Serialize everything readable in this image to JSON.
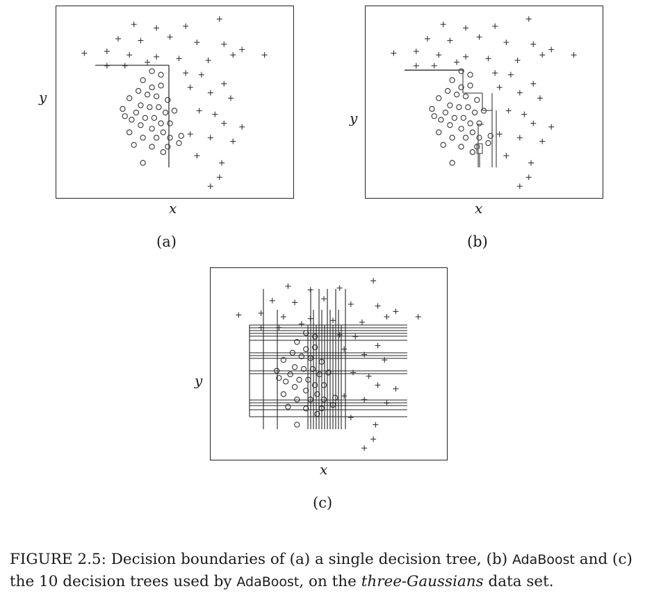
{
  "panels": [
    {
      "id": "a",
      "sublabel": "(a)",
      "xlabel": "x",
      "ylabel": "y"
    },
    {
      "id": "b",
      "sublabel": "(b)",
      "xlabel": "x",
      "ylabel": "y"
    },
    {
      "id": "c",
      "sublabel": "(c)",
      "xlabel": "x",
      "ylabel": "y"
    }
  ],
  "caption": {
    "prefix": "FIGURE 2.5: Decision boundaries of (a) a single decision tree, (b) ",
    "algo1": "AdaBoost",
    "mid": " and (c) the 10 decision trees used by ",
    "algo2": "AdaBoost",
    "mid2": ", on the ",
    "dataset": "three-Gaussians",
    "suffix": " data set."
  },
  "chart_data": [
    {
      "type": "scatter",
      "panel": "a",
      "title": "",
      "xlabel": "x",
      "ylabel": "y",
      "series": [
        {
          "marker": "plus",
          "points": [
            [
              0.32,
              0.93
            ],
            [
              0.42,
              0.91
            ],
            [
              0.55,
              0.92
            ],
            [
              0.7,
              0.96
            ],
            [
              0.25,
              0.85
            ],
            [
              0.35,
              0.84
            ],
            [
              0.48,
              0.86
            ],
            [
              0.6,
              0.83
            ],
            [
              0.72,
              0.82
            ],
            [
              0.8,
              0.79
            ],
            [
              0.1,
              0.77
            ],
            [
              0.2,
              0.78
            ],
            [
              0.3,
              0.76
            ],
            [
              0.42,
              0.75
            ],
            [
              0.52,
              0.74
            ],
            [
              0.65,
              0.73
            ],
            [
              0.76,
              0.76
            ],
            [
              0.9,
              0.76
            ],
            [
              0.2,
              0.7
            ],
            [
              0.28,
              0.7
            ],
            [
              0.38,
              0.72
            ],
            [
              0.55,
              0.66
            ],
            [
              0.62,
              0.65
            ],
            [
              0.72,
              0.6
            ],
            [
              0.57,
              0.58
            ],
            [
              0.66,
              0.55
            ],
            [
              0.75,
              0.52
            ],
            [
              0.61,
              0.45
            ],
            [
              0.68,
              0.43
            ],
            [
              0.72,
              0.38
            ],
            [
              0.8,
              0.36
            ],
            [
              0.57,
              0.32
            ],
            [
              0.66,
              0.3
            ],
            [
              0.76,
              0.28
            ],
            [
              0.6,
              0.2
            ],
            [
              0.71,
              0.16
            ],
            [
              0.7,
              0.08
            ],
            [
              0.66,
              0.03
            ]
          ]
        },
        {
          "marker": "circle",
          "points": [
            [
              0.4,
              0.67
            ],
            [
              0.44,
              0.65
            ],
            [
              0.36,
              0.62
            ],
            [
              0.4,
              0.58
            ],
            [
              0.44,
              0.59
            ],
            [
              0.34,
              0.56
            ],
            [
              0.38,
              0.54
            ],
            [
              0.42,
              0.53
            ],
            [
              0.47,
              0.51
            ],
            [
              0.3,
              0.52
            ],
            [
              0.35,
              0.48
            ],
            [
              0.39,
              0.47
            ],
            [
              0.43,
              0.47
            ],
            [
              0.46,
              0.44
            ],
            [
              0.33,
              0.44
            ],
            [
              0.37,
              0.41
            ],
            [
              0.41,
              0.41
            ],
            [
              0.44,
              0.38
            ],
            [
              0.27,
              0.46
            ],
            [
              0.28,
              0.42
            ],
            [
              0.31,
              0.4
            ],
            [
              0.35,
              0.37
            ],
            [
              0.4,
              0.35
            ],
            [
              0.45,
              0.33
            ],
            [
              0.48,
              0.38
            ],
            [
              0.5,
              0.45
            ],
            [
              0.3,
              0.33
            ],
            [
              0.36,
              0.3
            ],
            [
              0.42,
              0.3
            ],
            [
              0.48,
              0.3
            ],
            [
              0.53,
              0.31
            ],
            [
              0.32,
              0.26
            ],
            [
              0.4,
              0.25
            ],
            [
              0.47,
              0.25
            ],
            [
              0.52,
              0.27
            ],
            [
              0.36,
              0.16
            ],
            [
              0.45,
              0.22
            ]
          ]
        }
      ]
    },
    {
      "type": "scatter",
      "panel": "b",
      "title": "",
      "xlabel": "x",
      "ylabel": "y",
      "series": [
        {
          "marker": "plus",
          "points": [
            [
              0.32,
              0.93
            ],
            [
              0.42,
              0.91
            ],
            [
              0.55,
              0.92
            ],
            [
              0.7,
              0.96
            ],
            [
              0.25,
              0.85
            ],
            [
              0.35,
              0.84
            ],
            [
              0.48,
              0.86
            ],
            [
              0.6,
              0.83
            ],
            [
              0.72,
              0.82
            ],
            [
              0.8,
              0.79
            ],
            [
              0.1,
              0.77
            ],
            [
              0.2,
              0.78
            ],
            [
              0.3,
              0.76
            ],
            [
              0.42,
              0.75
            ],
            [
              0.52,
              0.74
            ],
            [
              0.65,
              0.73
            ],
            [
              0.76,
              0.76
            ],
            [
              0.9,
              0.76
            ],
            [
              0.2,
              0.7
            ],
            [
              0.28,
              0.7
            ],
            [
              0.38,
              0.72
            ],
            [
              0.55,
              0.66
            ],
            [
              0.62,
              0.65
            ],
            [
              0.72,
              0.6
            ],
            [
              0.57,
              0.58
            ],
            [
              0.66,
              0.55
            ],
            [
              0.75,
              0.52
            ],
            [
              0.61,
              0.45
            ],
            [
              0.68,
              0.43
            ],
            [
              0.72,
              0.38
            ],
            [
              0.8,
              0.36
            ],
            [
              0.57,
              0.32
            ],
            [
              0.66,
              0.3
            ],
            [
              0.76,
              0.28
            ],
            [
              0.6,
              0.2
            ],
            [
              0.71,
              0.16
            ],
            [
              0.7,
              0.08
            ],
            [
              0.66,
              0.03
            ]
          ]
        },
        {
          "marker": "circle",
          "points": [
            [
              0.4,
              0.67
            ],
            [
              0.44,
              0.65
            ],
            [
              0.36,
              0.62
            ],
            [
              0.4,
              0.58
            ],
            [
              0.44,
              0.59
            ],
            [
              0.34,
              0.56
            ],
            [
              0.38,
              0.54
            ],
            [
              0.42,
              0.53
            ],
            [
              0.47,
              0.51
            ],
            [
              0.3,
              0.52
            ],
            [
              0.35,
              0.48
            ],
            [
              0.39,
              0.47
            ],
            [
              0.43,
              0.47
            ],
            [
              0.46,
              0.44
            ],
            [
              0.33,
              0.44
            ],
            [
              0.37,
              0.41
            ],
            [
              0.41,
              0.41
            ],
            [
              0.44,
              0.38
            ],
            [
              0.27,
              0.46
            ],
            [
              0.28,
              0.42
            ],
            [
              0.31,
              0.4
            ],
            [
              0.35,
              0.37
            ],
            [
              0.4,
              0.35
            ],
            [
              0.45,
              0.33
            ],
            [
              0.48,
              0.38
            ],
            [
              0.5,
              0.45
            ],
            [
              0.3,
              0.33
            ],
            [
              0.36,
              0.3
            ],
            [
              0.42,
              0.3
            ],
            [
              0.48,
              0.3
            ],
            [
              0.53,
              0.31
            ],
            [
              0.32,
              0.26
            ],
            [
              0.4,
              0.25
            ],
            [
              0.47,
              0.25
            ],
            [
              0.52,
              0.27
            ],
            [
              0.36,
              0.16
            ],
            [
              0.45,
              0.22
            ]
          ]
        }
      ]
    },
    {
      "type": "scatter",
      "panel": "c",
      "title": "",
      "xlabel": "x",
      "ylabel": "y",
      "series": [
        {
          "marker": "plus",
          "points": [
            [
              0.32,
              0.93
            ],
            [
              0.42,
              0.91
            ],
            [
              0.55,
              0.92
            ],
            [
              0.7,
              0.96
            ],
            [
              0.25,
              0.85
            ],
            [
              0.35,
              0.84
            ],
            [
              0.48,
              0.86
            ],
            [
              0.6,
              0.83
            ],
            [
              0.72,
              0.82
            ],
            [
              0.8,
              0.79
            ],
            [
              0.1,
              0.77
            ],
            [
              0.2,
              0.78
            ],
            [
              0.3,
              0.76
            ],
            [
              0.42,
              0.75
            ],
            [
              0.52,
              0.74
            ],
            [
              0.65,
              0.73
            ],
            [
              0.76,
              0.76
            ],
            [
              0.9,
              0.76
            ],
            [
              0.2,
              0.7
            ],
            [
              0.28,
              0.7
            ],
            [
              0.38,
              0.72
            ],
            [
              0.55,
              0.66
            ],
            [
              0.62,
              0.65
            ],
            [
              0.72,
              0.6
            ],
            [
              0.57,
              0.58
            ],
            [
              0.66,
              0.55
            ],
            [
              0.75,
              0.52
            ],
            [
              0.61,
              0.45
            ],
            [
              0.68,
              0.43
            ],
            [
              0.72,
              0.38
            ],
            [
              0.8,
              0.36
            ],
            [
              0.57,
              0.32
            ],
            [
              0.66,
              0.3
            ],
            [
              0.76,
              0.28
            ],
            [
              0.6,
              0.2
            ],
            [
              0.71,
              0.16
            ],
            [
              0.7,
              0.08
            ],
            [
              0.66,
              0.03
            ]
          ]
        },
        {
          "marker": "circle",
          "points": [
            [
              0.4,
              0.67
            ],
            [
              0.44,
              0.65
            ],
            [
              0.36,
              0.62
            ],
            [
              0.4,
              0.58
            ],
            [
              0.44,
              0.59
            ],
            [
              0.34,
              0.56
            ],
            [
              0.38,
              0.54
            ],
            [
              0.42,
              0.53
            ],
            [
              0.47,
              0.51
            ],
            [
              0.3,
              0.52
            ],
            [
              0.35,
              0.48
            ],
            [
              0.39,
              0.47
            ],
            [
              0.43,
              0.47
            ],
            [
              0.46,
              0.44
            ],
            [
              0.33,
              0.44
            ],
            [
              0.37,
              0.41
            ],
            [
              0.41,
              0.41
            ],
            [
              0.44,
              0.38
            ],
            [
              0.27,
              0.46
            ],
            [
              0.28,
              0.42
            ],
            [
              0.31,
              0.4
            ],
            [
              0.35,
              0.37
            ],
            [
              0.4,
              0.35
            ],
            [
              0.45,
              0.33
            ],
            [
              0.48,
              0.38
            ],
            [
              0.5,
              0.45
            ],
            [
              0.3,
              0.33
            ],
            [
              0.36,
              0.3
            ],
            [
              0.42,
              0.3
            ],
            [
              0.48,
              0.3
            ],
            [
              0.53,
              0.31
            ],
            [
              0.32,
              0.26
            ],
            [
              0.4,
              0.25
            ],
            [
              0.47,
              0.25
            ],
            [
              0.52,
              0.27
            ],
            [
              0.36,
              0.16
            ],
            [
              0.45,
              0.22
            ]
          ]
        }
      ]
    }
  ]
}
